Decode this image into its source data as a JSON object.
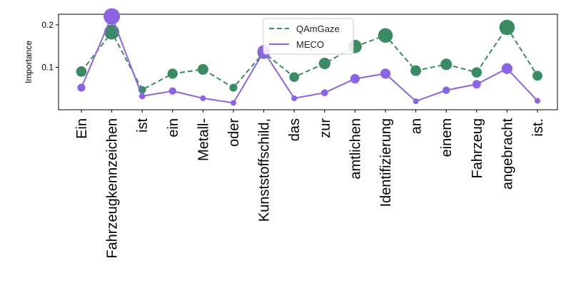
{
  "chart_data": {
    "type": "line",
    "categories": [
      "Ein",
      "Fahrzeugkennzeichen",
      "ist",
      "ein",
      "Metall-",
      "oder",
      "Kunststoffschild,",
      "das",
      "zur",
      "amtlichen",
      "Identifizierung",
      "an",
      "einem",
      "Fahrzeug",
      "angebracht",
      "ist."
    ],
    "ylabel": "Importance",
    "ylim": [
      0.0,
      0.225
    ],
    "yticks": [
      0.1,
      0.2
    ],
    "legend_position": "top-center",
    "grid": false,
    "marker_size_encodes": "value",
    "series": [
      {
        "name": "QAmGaze",
        "color": "#3a8a63",
        "line_style": "dashed",
        "values": [
          0.09,
          0.183,
          0.047,
          0.085,
          0.095,
          0.052,
          0.135,
          0.077,
          0.109,
          0.149,
          0.175,
          0.092,
          0.107,
          0.088,
          0.194,
          0.08
        ]
      },
      {
        "name": "MECO",
        "color": "#8c63e0",
        "line_style": "solid",
        "values": [
          0.052,
          0.22,
          0.032,
          0.044,
          0.027,
          0.016,
          0.137,
          0.027,
          0.04,
          0.073,
          0.085,
          0.02,
          0.046,
          0.06,
          0.097,
          0.021
        ]
      }
    ]
  }
}
